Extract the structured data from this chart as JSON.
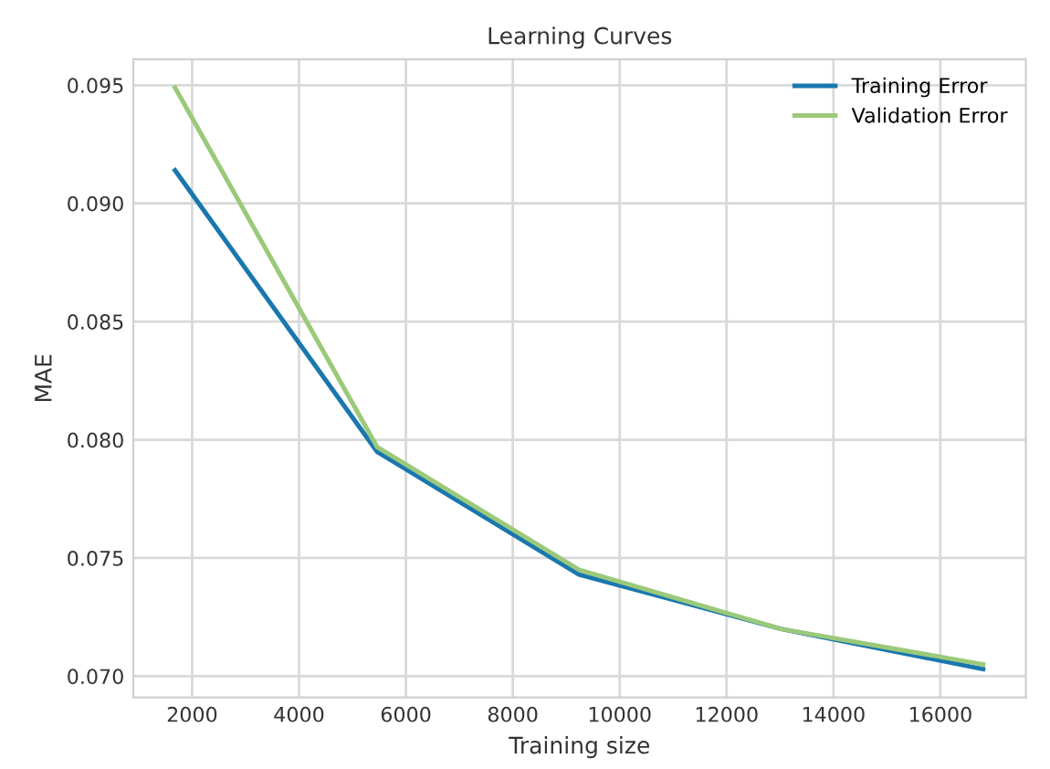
{
  "chart_data": {
    "type": "line",
    "title": "Learning Curves",
    "xlabel": "Training size",
    "ylabel": "MAE",
    "x": [
      1680,
      5460,
      9240,
      13020,
      16800
    ],
    "series": [
      {
        "name": "Training Error",
        "color": "#1a77ae",
        "values": [
          0.0914,
          0.0795,
          0.0743,
          0.072,
          0.0703
        ]
      },
      {
        "name": "Validation Error",
        "color": "#9bc97a",
        "values": [
          0.0949,
          0.0797,
          0.0745,
          0.072,
          0.0705
        ]
      }
    ],
    "xlim": [
      900,
      17600
    ],
    "ylim": [
      0.0691,
      0.0961
    ],
    "xticks": [
      2000,
      4000,
      6000,
      8000,
      10000,
      12000,
      14000,
      16000
    ],
    "yticks": [
      {
        "value": 0.07,
        "label": "0.070"
      },
      {
        "value": 0.075,
        "label": "0.075"
      },
      {
        "value": 0.08,
        "label": "0.080"
      },
      {
        "value": 0.085,
        "label": "0.085"
      },
      {
        "value": 0.09,
        "label": "0.090"
      },
      {
        "value": 0.095,
        "label": "0.095"
      }
    ],
    "grid": true,
    "legend": "top right",
    "marker": "none",
    "line_style": "solid"
  }
}
